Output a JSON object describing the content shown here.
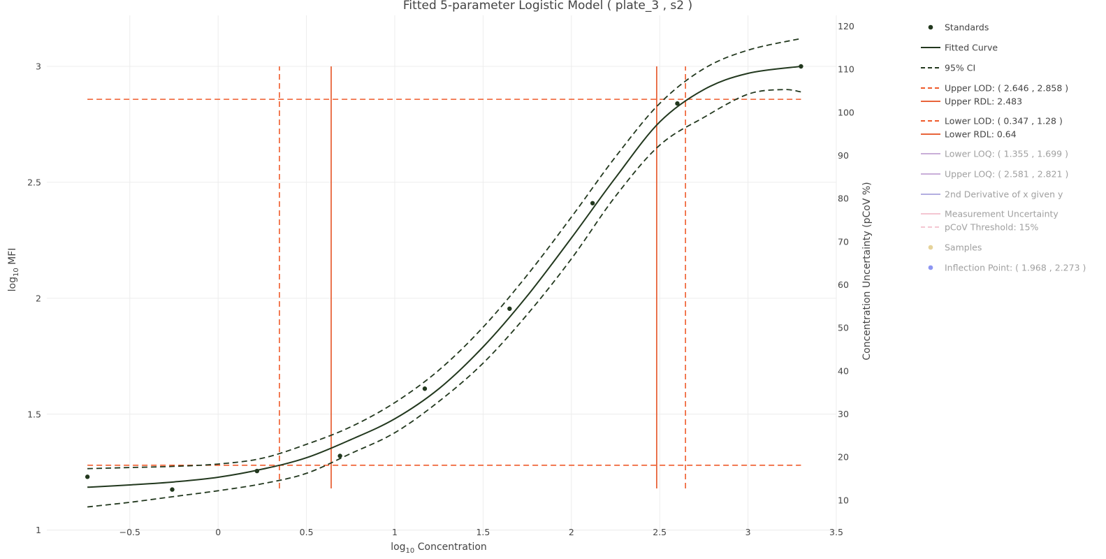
{
  "chart_data": {
    "type": "scatter",
    "title": "Fitted 5-parameter Logistic Model ( plate_3 , s2 )",
    "xlabel": {
      "base": "log",
      "sub": "10",
      "rest": " Concentration"
    },
    "ylabel": {
      "base": "log",
      "sub": "10",
      "rest": " MFI"
    },
    "y2label": "Concentration Uncertainty (pCoV %)",
    "xlim": [
      -0.97,
      3.5
    ],
    "ylim": [
      0.99,
      3.22
    ],
    "y2lim": [
      2.5,
      122.5
    ],
    "xticks": [
      -0.5,
      0,
      0.5,
      1,
      1.5,
      2,
      2.5,
      3,
      3.5
    ],
    "xtick_labels": [
      "−0.5",
      "0",
      "0.5",
      "1",
      "1.5",
      "2",
      "2.5",
      "3",
      "3.5"
    ],
    "yticks": [
      1,
      1.5,
      2,
      2.5,
      3
    ],
    "ytick_labels": [
      "1",
      "1.5",
      "2",
      "2.5",
      "3"
    ],
    "y2ticks": [
      10,
      20,
      30,
      40,
      50,
      60,
      70,
      80,
      90,
      100,
      110,
      120
    ],
    "y2tick_labels": [
      "10",
      "20",
      "30",
      "40",
      "50",
      "60",
      "70",
      "80",
      "90",
      "100",
      "110",
      "120"
    ],
    "grid": true,
    "legend_position": "right",
    "colors": {
      "standards": "#22381e",
      "fitted": "#22381e",
      "ci": "#22381e",
      "lod": "#ef5a2a",
      "rdl": "#e8643a",
      "legend_active": "#444444",
      "legend_inactive": "#a0a0a0",
      "grid": "#ececec"
    },
    "standards": {
      "x": [
        -0.74,
        -0.26,
        0.22,
        0.69,
        1.17,
        1.65,
        2.12,
        2.6,
        3.3
      ],
      "y": [
        1.23,
        1.175,
        1.255,
        1.32,
        1.61,
        1.955,
        2.41,
        2.84,
        3.0
      ]
    },
    "fitted_curve": {
      "x": [
        -0.74,
        -0.5,
        -0.25,
        0,
        0.25,
        0.5,
        0.75,
        1,
        1.25,
        1.5,
        1.75,
        2,
        2.25,
        2.5,
        2.75,
        3,
        3.3
      ],
      "y": [
        1.185,
        1.195,
        1.208,
        1.228,
        1.263,
        1.312,
        1.39,
        1.48,
        1.61,
        1.79,
        2.01,
        2.26,
        2.52,
        2.76,
        2.9,
        2.97,
        3.0
      ]
    },
    "ci_upper": {
      "x": [
        -0.74,
        -0.5,
        -0.25,
        0,
        0.25,
        0.5,
        0.75,
        1,
        1.25,
        1.5,
        1.75,
        2,
        2.25,
        2.5,
        2.75,
        3,
        3.3
      ],
      "y": [
        1.265,
        1.27,
        1.275,
        1.285,
        1.31,
        1.37,
        1.445,
        1.55,
        1.69,
        1.875,
        2.1,
        2.35,
        2.61,
        2.84,
        2.99,
        3.07,
        3.12
      ]
    },
    "ci_lower": {
      "x": [
        -0.74,
        -0.5,
        -0.25,
        0,
        0.25,
        0.5,
        0.75,
        1,
        1.25,
        1.5,
        1.75,
        2,
        2.25,
        2.5,
        2.75,
        3,
        3.2,
        3.3
      ],
      "y": [
        1.1,
        1.12,
        1.145,
        1.17,
        1.2,
        1.245,
        1.33,
        1.42,
        1.555,
        1.72,
        1.93,
        2.17,
        2.44,
        2.66,
        2.78,
        2.88,
        2.9,
        2.89
      ]
    },
    "lod_horizontal": [
      {
        "y": 2.858,
        "x_start": -0.74,
        "x_end": 3.3
      },
      {
        "y": 1.28,
        "x_start": -0.74,
        "x_end": 3.3
      }
    ],
    "lod_vertical": [
      {
        "x": 0.347,
        "y_start": 1.18,
        "y_end": 3.0
      },
      {
        "x": 2.646,
        "y_start": 1.18,
        "y_end": 3.0
      }
    ],
    "rdl_vertical": [
      {
        "x": 0.64,
        "y_start": 1.18,
        "y_end": 3.0
      },
      {
        "x": 2.483,
        "y_start": 1.18,
        "y_end": 3.0
      }
    ],
    "legend": [
      {
        "label": "Standards",
        "kind": "marker",
        "active": true
      },
      {
        "label": "Fitted Curve",
        "kind": "solid",
        "active": true
      },
      {
        "label": "95% CI",
        "kind": "dash",
        "active": true
      },
      {
        "label": "Upper LOD: ( 2.646 , 2.858 )",
        "kind": "dash-orange",
        "active": true
      },
      {
        "label": "Upper RDL: 2.483",
        "kind": "solid-orange",
        "active": true
      },
      {
        "label": "Lower LOD: ( 0.347 , 1.28 )",
        "kind": "dash-orange",
        "active": true
      },
      {
        "label": "Lower RDL: 0.64",
        "kind": "solid-orange",
        "active": true
      },
      {
        "label": "Lower LOQ: ( 1.355 , 1.699 )",
        "kind": "solid-lavender",
        "active": false
      },
      {
        "label": "Upper LOQ: ( 2.581 , 2.821 )",
        "kind": "solid-lavender",
        "active": false
      },
      {
        "label": "2nd Derivative of x given y",
        "kind": "solid-violet",
        "active": false
      },
      {
        "label": "Measurement Uncertainty",
        "kind": "solid-pink",
        "active": false
      },
      {
        "label": "pCoV Threshold: 15%",
        "kind": "dash-pink",
        "active": false
      },
      {
        "label": "Samples",
        "kind": "marker-tan",
        "active": false
      },
      {
        "label": "Inflection Point: ( 1.968 , 2.273 )",
        "kind": "marker-blue",
        "active": false
      }
    ]
  }
}
